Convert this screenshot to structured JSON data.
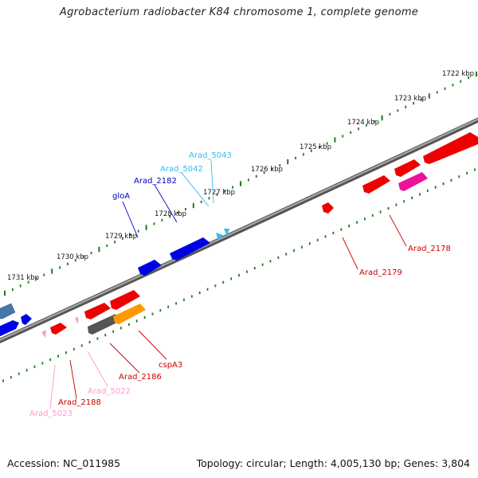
{
  "title": "Agrobacterium radiobacter K84 chromosome 1, complete genome",
  "accession": "Accession: NC_011985",
  "summary": "Topology: circular; Length: 4,005,130 bp; Genes: 3,804",
  "colors": {
    "backbone": "#777777",
    "ticks": "#1e7a1e",
    "red_gene": "#ee0000",
    "blue_gene": "#0000e6",
    "cyan_gene": "#33bbee",
    "pink_gene": "#ff99cc",
    "magenta_gene": "#ee1199",
    "orange_gene": "#ff9900",
    "gray_gene": "#555555",
    "steel_gene": "#4477aa"
  },
  "kbp_labels": [
    "1722 kbp",
    "1723 kbp",
    "1724 kbp",
    "1725 kbp",
    "1726 kbp",
    "1727 kbp",
    "1728 kbp",
    "1729 kbp",
    "1730 kbp",
    "1731 kbp"
  ],
  "gene_labels": [
    {
      "text": "Arad_5043",
      "color": "#33bbee"
    },
    {
      "text": "Arad_5042",
      "color": "#33bbee"
    },
    {
      "text": "Arad_2182",
      "color": "#0000cc"
    },
    {
      "text": "gloA",
      "color": "#0000cc"
    },
    {
      "text": "Arad_2178",
      "color": "#cc0000"
    },
    {
      "text": "Arad_2179",
      "color": "#cc0000"
    },
    {
      "text": "cspA3",
      "color": "#cc0000"
    },
    {
      "text": "Arad_2186",
      "color": "#cc0000"
    },
    {
      "text": "Arad_5022",
      "color": "#ff99cc"
    },
    {
      "text": "Arad_2188",
      "color": "#cc0000"
    },
    {
      "text": "Arad_5023",
      "color": "#ff99cc"
    }
  ]
}
